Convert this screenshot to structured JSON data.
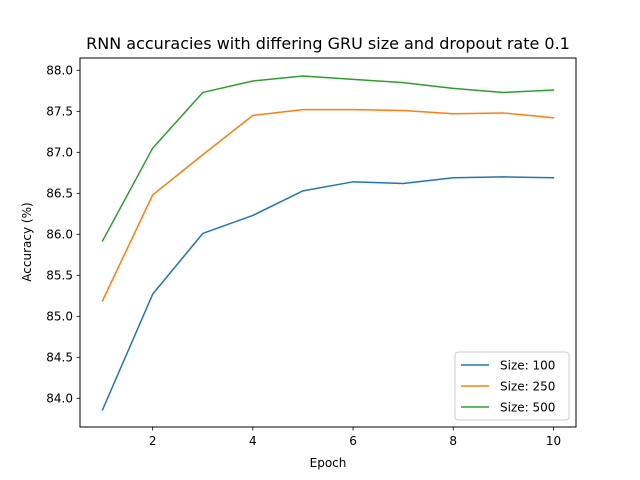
{
  "chart_data": {
    "type": "line",
    "title": "RNN accuracies with differing GRU size and dropout rate 0.1",
    "xlabel": "Epoch",
    "ylabel": "Accuracy (%)",
    "xlim": [
      0.55,
      10.45
    ],
    "ylim": [
      83.65,
      88.15
    ],
    "xticks": [
      2,
      4,
      6,
      8,
      10
    ],
    "yticks": [
      84.0,
      84.5,
      85.0,
      85.5,
      86.0,
      86.5,
      87.0,
      87.5,
      88.0
    ],
    "grid": false,
    "legend_position": "lower-right",
    "x": [
      1,
      2,
      3,
      4,
      5,
      6,
      7,
      8,
      9,
      10
    ],
    "series": [
      {
        "name": "Size: 100",
        "color": "#1f77b4",
        "values": [
          83.86,
          85.27,
          86.01,
          86.23,
          86.53,
          86.64,
          86.62,
          86.69,
          86.7,
          86.69
        ]
      },
      {
        "name": "Size: 250",
        "color": "#ff7f0e",
        "values": [
          85.19,
          86.48,
          86.97,
          87.45,
          87.52,
          87.52,
          87.51,
          87.47,
          87.48,
          87.42
        ]
      },
      {
        "name": "Size: 500",
        "color": "#2ca02c",
        "values": [
          85.92,
          87.05,
          87.73,
          87.87,
          87.93,
          87.89,
          87.85,
          87.78,
          87.73,
          87.76
        ]
      }
    ]
  }
}
